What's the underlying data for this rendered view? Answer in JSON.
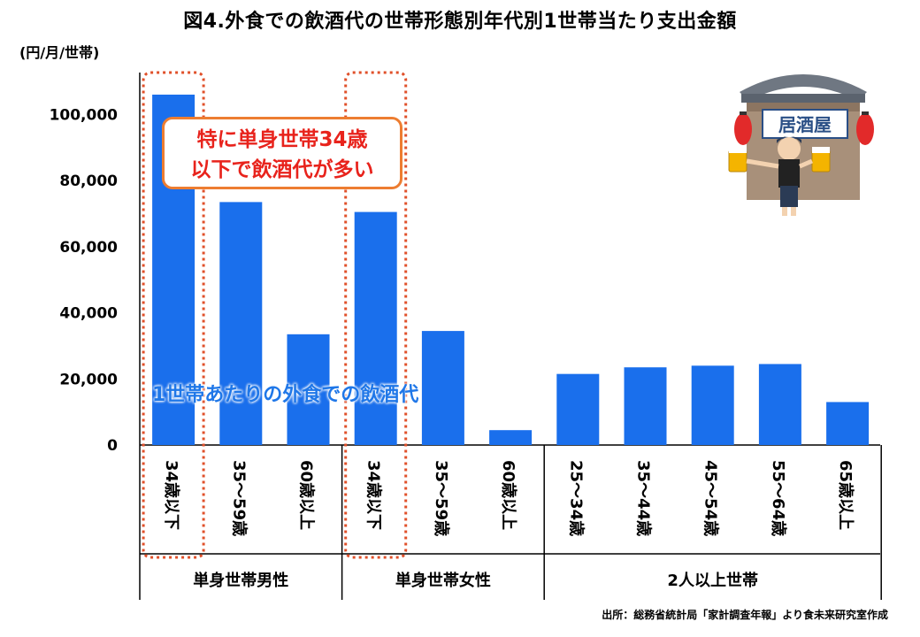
{
  "chart_data": {
    "type": "bar",
    "title": "図4.外食での飲酒代の世帯形態別年代別1世帯当たり支出金額",
    "ylabel": "(円/月/世帯)",
    "ylim": [
      0,
      110000
    ],
    "yticks": [
      0,
      20000,
      40000,
      60000,
      80000,
      100000
    ],
    "ytick_labels": [
      "0",
      "20,000",
      "40,000",
      "60,000",
      "80,000",
      "100,000"
    ],
    "bar_color": "#1a6fec",
    "categories": [
      "34歳以下",
      "35～59歳",
      "60歳以上",
      "34歳以下",
      "35～59歳",
      "60歳以上",
      "25～34歳",
      "35～44歳",
      "45～54歳",
      "55～64歳",
      "65歳以上"
    ],
    "values": [
      106000,
      73500,
      33500,
      70500,
      34500,
      4500,
      21500,
      23500,
      24000,
      24500,
      13000
    ],
    "groups": [
      {
        "label": "単身世帯男性",
        "count": 3
      },
      {
        "label": "単身世帯女性",
        "count": 3
      },
      {
        "label": "2人以上世帯",
        "count": 5
      }
    ],
    "highlight_indices": [
      0,
      3
    ],
    "highlight_color": "#e0502a",
    "annotation": "1世帯あたりの外食での飲酒代"
  },
  "callout": {
    "line1": "特に単身世帯34歳",
    "line2": "以下で飲酒代が多い"
  },
  "source": "出所：総務省統計局「家計調査年報」より食未来研究室作成",
  "illustration": {
    "sign_text": "居酒屋",
    "icon": "izakaya-server-icon"
  }
}
